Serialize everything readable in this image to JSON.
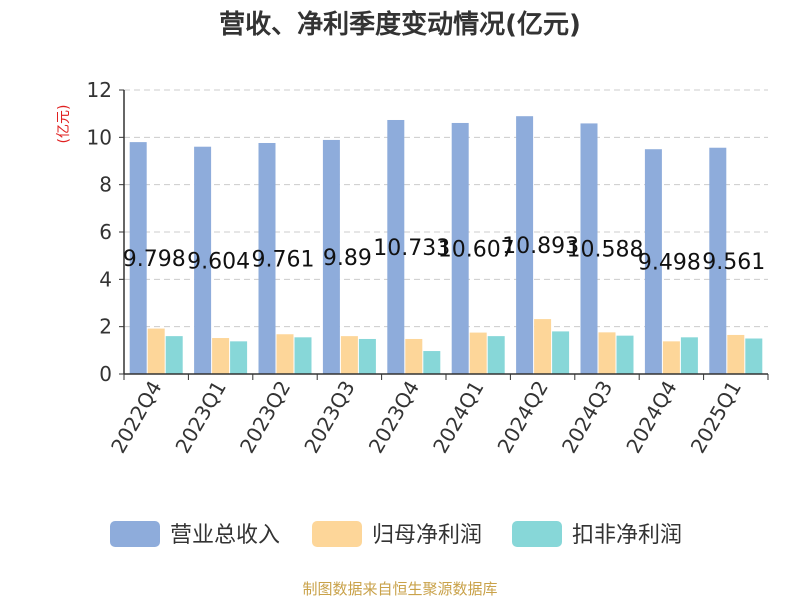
{
  "chart_data": {
    "type": "bar",
    "title": "营收、净利季度变动情况(亿元)",
    "ylabel": "(亿元)",
    "ylim": [
      0,
      12
    ],
    "yticks": [
      "0",
      "2",
      "4",
      "6",
      "8",
      "10",
      "12"
    ],
    "grid": true,
    "legend_position": "bottom",
    "categories": [
      "2022Q4",
      "2023Q1",
      "2023Q2",
      "2023Q3",
      "2023Q4",
      "2024Q1",
      "2024Q2",
      "2024Q3",
      "2024Q4",
      "2025Q1"
    ],
    "series": [
      {
        "name": "营业总收入",
        "color": "#8eacdb",
        "values": [
          9.798,
          9.604,
          9.761,
          9.89,
          10.733,
          10.607,
          10.893,
          10.588,
          9.498,
          9.561
        ],
        "data_labels": [
          "9.798",
          "9.604",
          "9.761",
          "9.89",
          "10.733",
          "10.607",
          "10.893",
          "10.588",
          "9.498",
          "9.561"
        ]
      },
      {
        "name": "归母净利润",
        "color": "#fdd699",
        "values": [
          1.92,
          1.52,
          1.68,
          1.6,
          1.48,
          1.75,
          2.32,
          1.76,
          1.38,
          1.65
        ]
      },
      {
        "name": "扣非净利润",
        "color": "#87d7d8",
        "values": [
          1.6,
          1.38,
          1.55,
          1.48,
          0.97,
          1.6,
          1.8,
          1.62,
          1.55,
          1.5
        ]
      }
    ]
  },
  "colors": {
    "title": "#333333",
    "ylabel": "#e02020",
    "axis": "#333333",
    "grid": "#cccccc",
    "source": "#c9a24a"
  },
  "source_text": "制图数据来自恒生聚源数据库"
}
